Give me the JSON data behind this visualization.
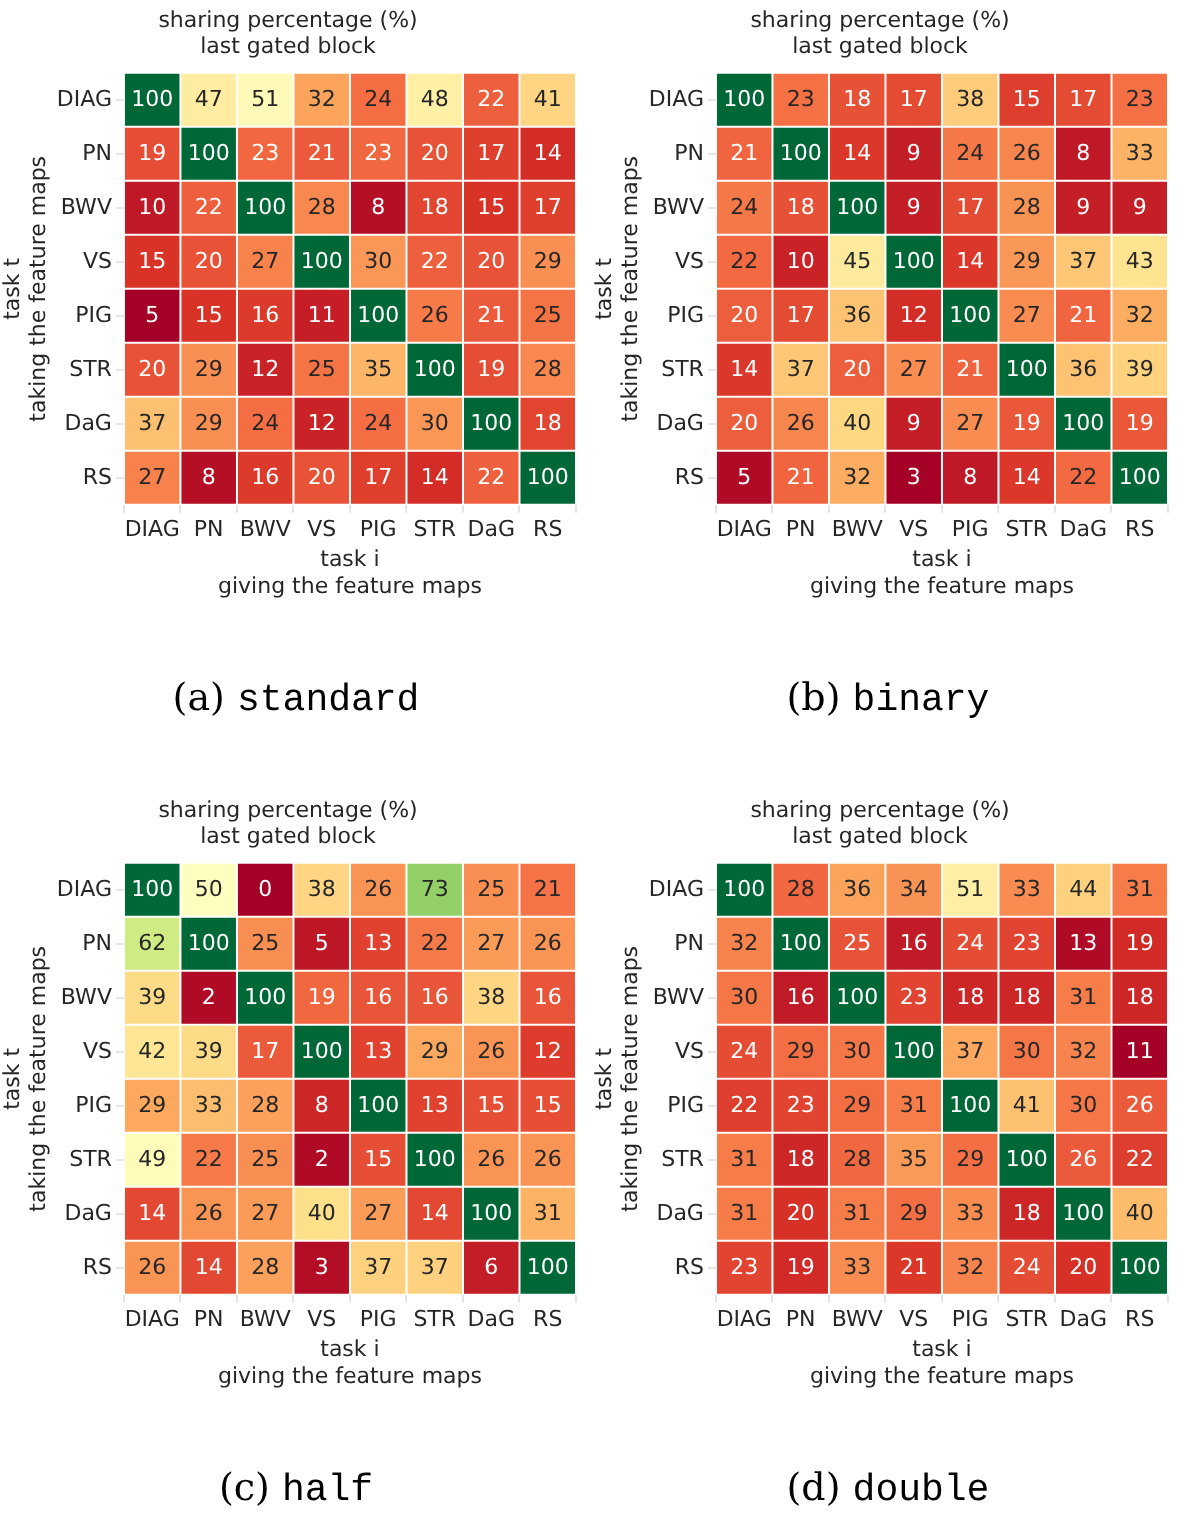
{
  "chart_data": [
    {
      "type": "heatmap",
      "title": "sharing percentage (%)",
      "subtitle": "last gated block",
      "xlabel": "task i\ngiving the feature maps",
      "ylabel": "task t\ntaking the feature maps",
      "categories": [
        "DIAG",
        "PN",
        "BWV",
        "VS",
        "PIG",
        "STR",
        "DaG",
        "RS"
      ],
      "y_categories": [
        "DIAG",
        "PN",
        "BWV",
        "VS",
        "PIG",
        "STR",
        "DaG",
        "RS"
      ],
      "cells": [
        [
          100,
          47,
          51,
          32,
          24,
          48,
          22,
          41
        ],
        [
          19,
          100,
          23,
          21,
          23,
          20,
          17,
          14
        ],
        [
          10,
          22,
          100,
          28,
          8,
          18,
          15,
          17
        ],
        [
          15,
          20,
          27,
          100,
          30,
          22,
          20,
          29
        ],
        [
          5,
          15,
          16,
          11,
          100,
          26,
          21,
          25
        ],
        [
          20,
          29,
          12,
          25,
          35,
          100,
          19,
          28
        ],
        [
          37,
          29,
          24,
          12,
          24,
          30,
          100,
          18
        ],
        [
          27,
          8,
          16,
          20,
          17,
          14,
          22,
          100
        ]
      ],
      "annotations": [
        "(a) standard"
      ],
      "data_labels": true
    },
    {
      "type": "heatmap",
      "title": "sharing percentage (%)",
      "subtitle": "last gated block",
      "xlabel": "task i\ngiving the feature maps",
      "ylabel": "task t\ntaking the feature maps",
      "categories": [
        "DIAG",
        "PN",
        "BWV",
        "VS",
        "PIG",
        "STR",
        "DaG",
        "RS"
      ],
      "y_categories": [
        "DIAG",
        "PN",
        "BWV",
        "VS",
        "PIG",
        "STR",
        "DaG",
        "RS"
      ],
      "cells": [
        [
          100,
          23,
          18,
          17,
          38,
          15,
          17,
          23
        ],
        [
          21,
          100,
          14,
          9,
          24,
          26,
          8,
          33
        ],
        [
          24,
          18,
          100,
          9,
          17,
          28,
          9,
          9
        ],
        [
          22,
          10,
          45,
          100,
          14,
          29,
          37,
          43
        ],
        [
          20,
          17,
          36,
          12,
          100,
          27,
          21,
          32
        ],
        [
          14,
          37,
          20,
          27,
          21,
          100,
          36,
          39
        ],
        [
          20,
          26,
          40,
          9,
          27,
          19,
          100,
          19
        ],
        [
          5,
          21,
          32,
          3,
          8,
          14,
          22,
          100
        ]
      ],
      "annotations": [
        "(b) binary"
      ],
      "data_labels": true
    },
    {
      "type": "heatmap",
      "title": "sharing percentage (%)",
      "subtitle": "last gated block",
      "xlabel": "task i\ngiving the feature maps",
      "ylabel": "task t\ntaking the feature maps",
      "categories": [
        "DIAG",
        "PN",
        "BWV",
        "VS",
        "PIG",
        "STR",
        "DaG",
        "RS"
      ],
      "y_categories": [
        "DIAG",
        "PN",
        "BWV",
        "VS",
        "PIG",
        "STR",
        "DaG",
        "RS"
      ],
      "cells": [
        [
          100,
          50,
          0,
          38,
          26,
          73,
          25,
          21
        ],
        [
          62,
          100,
          25,
          5,
          13,
          22,
          27,
          26
        ],
        [
          39,
          2,
          100,
          19,
          16,
          16,
          38,
          16
        ],
        [
          42,
          39,
          17,
          100,
          13,
          29,
          26,
          12
        ],
        [
          29,
          33,
          28,
          8,
          100,
          13,
          15,
          15
        ],
        [
          49,
          22,
          25,
          2,
          15,
          100,
          26,
          26
        ],
        [
          14,
          26,
          27,
          40,
          27,
          14,
          100,
          31
        ],
        [
          26,
          14,
          28,
          3,
          37,
          37,
          6,
          100
        ]
      ],
      "annotations": [
        "(c) half"
      ],
      "data_labels": true
    },
    {
      "type": "heatmap",
      "title": "sharing percentage (%)",
      "subtitle": "last gated block",
      "xlabel": "task i\ngiving the feature maps",
      "ylabel": "task t\ntaking the feature maps",
      "categories": [
        "DIAG",
        "PN",
        "BWV",
        "VS",
        "PIG",
        "STR",
        "DaG",
        "RS"
      ],
      "y_categories": [
        "DIAG",
        "PN",
        "BWV",
        "VS",
        "PIG",
        "STR",
        "DaG",
        "RS"
      ],
      "cells": [
        [
          100,
          28,
          36,
          34,
          51,
          33,
          44,
          31
        ],
        [
          32,
          100,
          25,
          16,
          24,
          23,
          13,
          19
        ],
        [
          30,
          16,
          100,
          23,
          18,
          18,
          31,
          18
        ],
        [
          24,
          29,
          30,
          100,
          37,
          30,
          32,
          11
        ],
        [
          22,
          23,
          29,
          31,
          100,
          41,
          30,
          26
        ],
        [
          31,
          18,
          28,
          35,
          29,
          100,
          26,
          22
        ],
        [
          31,
          20,
          31,
          29,
          33,
          18,
          100,
          40
        ],
        [
          23,
          19,
          33,
          21,
          32,
          24,
          20,
          100
        ]
      ],
      "annotations": [
        "(d) double"
      ],
      "data_labels": true
    }
  ]
}
